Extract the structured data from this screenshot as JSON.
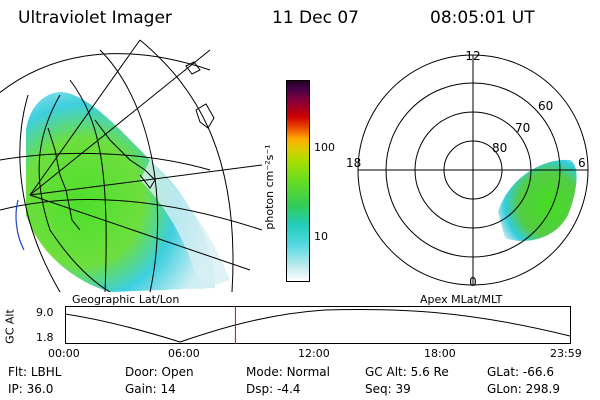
{
  "header": {
    "title": "Ultraviolet Imager",
    "date": "11 Dec 07",
    "time": "08:05:01 UT"
  },
  "geo_panel": {
    "caption": "Geographic Lat/Lon"
  },
  "colorbar": {
    "unit_label": "photon cm⁻²s⁻¹",
    "ticks": [
      "100",
      "10"
    ],
    "scale": "log"
  },
  "polar_panel": {
    "caption": "Apex MLat/MLT",
    "mlt_labels": {
      "top": "12",
      "left": "18",
      "right": "6",
      "bottom": "0"
    },
    "mlat_labels": [
      "60",
      "70",
      "80"
    ]
  },
  "altitude_plot": {
    "ylabel": "GC Alt",
    "y_ticks": [
      "9.0",
      "1.8"
    ],
    "x_ticks": [
      "00:00",
      "06:00",
      "12:00",
      "18:00",
      "23:59"
    ],
    "current_time_fraction": 0.3368
  },
  "info": {
    "row1": [
      {
        "label": "Flt:",
        "value": "LBHL"
      },
      {
        "label": "Door:",
        "value": "Open"
      },
      {
        "label": "Mode:",
        "value": "Normal"
      },
      {
        "label": "GC Alt:",
        "value": "5.6 Re"
      },
      {
        "label": "GLat:",
        "value": "-66.6"
      }
    ],
    "row2": [
      {
        "label": "IP:",
        "value": "36.0"
      },
      {
        "label": "Gain:",
        "value": "14"
      },
      {
        "label": "Dsp:",
        "value": "-4.4"
      },
      {
        "label": "Seq:",
        "value": "39"
      },
      {
        "label": "GLon:",
        "value": "298.9"
      }
    ]
  },
  "colors": {
    "emission_green": "#44dd22",
    "emission_cyan": "#33ccdd",
    "emission_light": "#bbe8ee",
    "marker_red": "#dd0000"
  }
}
